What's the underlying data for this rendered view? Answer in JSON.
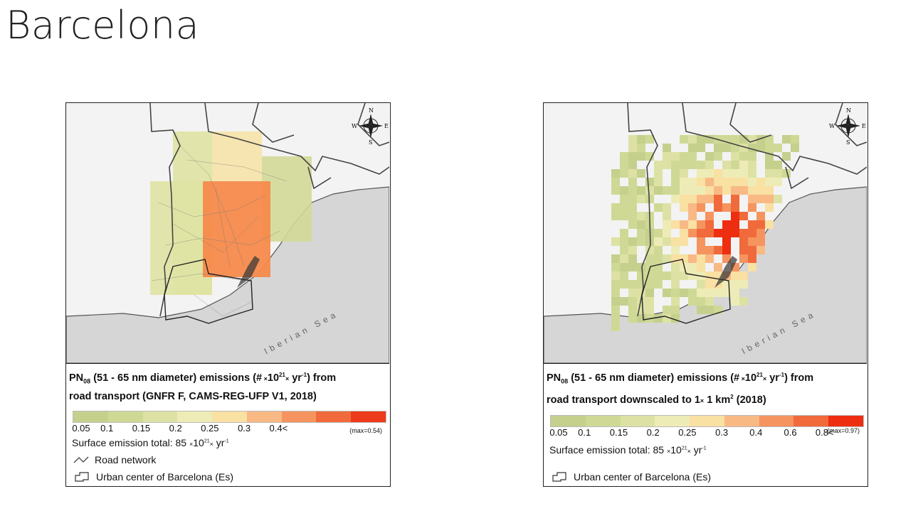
{
  "slide": {
    "title": "Barcelona"
  },
  "map_labels": {
    "sea": "Iberian Sea",
    "compass": {
      "n": "N",
      "s": "S",
      "e": "E",
      "w": "W"
    }
  },
  "left_panel": {
    "title_parts": {
      "species": "PN",
      "sub": "08",
      "range": " (51 - 65 nm diameter) emissions (#",
      "x1": " ×",
      "ten": "10",
      "exp": "21",
      "x2": "×",
      "yr": " yr",
      "neg": "-1",
      "close": ") from"
    },
    "title_line2": "road transport (GNFR F, CAMS-REG-UFP V1, 2018)",
    "ramp_colors": [
      "#c5d08d",
      "#cfd995",
      "#dde2a4",
      "#eeecb6",
      "#f9e0a3",
      "#f8b985",
      "#f5945f",
      "#f06a3c",
      "#ee3a1c"
    ],
    "ticks": [
      "0.05",
      "0.1",
      "0.15",
      "0.2",
      "0.25",
      "0.3",
      "0.4<"
    ],
    "max_note": "(max=0.54)",
    "total": {
      "label": "Surface emission total: 85 ",
      "x1": "×",
      "ten": "10",
      "exp": "21",
      "x2": "×",
      "yr": " yr",
      "neg": "-1"
    },
    "road_legend": "Road network",
    "urban_legend": "Urban center of Barcelona (Es)"
  },
  "right_panel": {
    "title_parts": {
      "species": "PN",
      "sub": "08",
      "range": " (51 - 65 nm diameter) emissions (#",
      "x1": " ×",
      "ten": "10",
      "exp": "21",
      "x2": "×",
      "yr": " yr",
      "neg": "-1",
      "close": ") from"
    },
    "title_line2_a": "road transport downscaled to 1",
    "title_line2_x": "×",
    "title_line2_b": " 1 km",
    "title_line2_exp": "2",
    "title_line2_c": " (2018)",
    "ramp_colors": [
      "#c5d08d",
      "#cfd995",
      "#dde2a4",
      "#eeecb6",
      "#f9e0a3",
      "#f8b985",
      "#f5945f",
      "#f06a3c",
      "#ee2e10"
    ],
    "ticks": [
      "0.05",
      "0.1",
      "0.15",
      "0.2",
      "0.25",
      "0.3",
      "0.4",
      "0.6",
      "0.8<"
    ],
    "max_note": "(max=0.97)",
    "total": {
      "label": "Surface emission total: 85 ",
      "x1": "×",
      "ten": "10",
      "exp": "21",
      "x2": "×",
      "yr": " yr",
      "neg": "-1"
    },
    "urban_legend": "Urban center of Barcelona (Es)"
  }
}
